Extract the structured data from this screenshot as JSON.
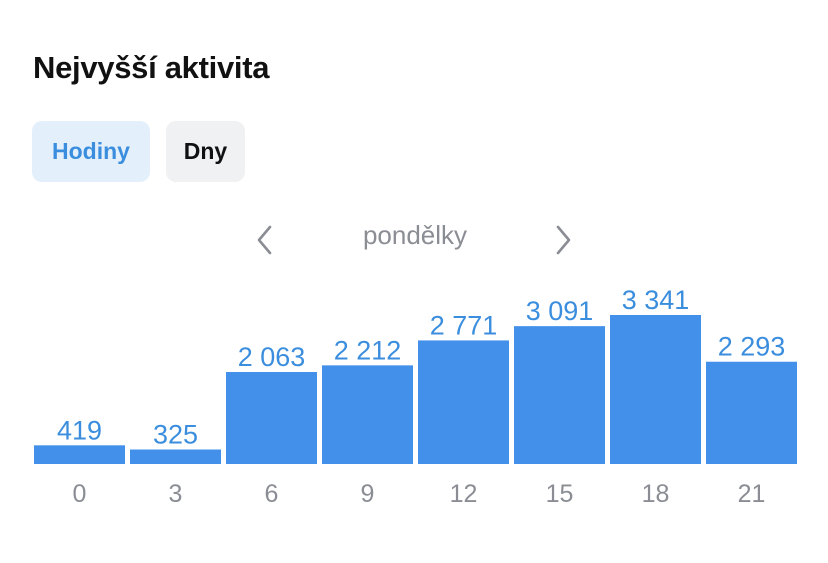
{
  "header": {
    "title": "Nejvyšší aktivita"
  },
  "toggle": {
    "hours_label": "Hodiny",
    "days_label": "Dny",
    "selected": "hours"
  },
  "period_nav": {
    "label": "pondělky",
    "prev_icon": "chevron-left-icon",
    "next_icon": "chevron-right-icon"
  },
  "colors": {
    "bar": "#4290ea",
    "value_label": "#3b8ede",
    "selected_tab_bg": "#e3f0fc",
    "tab_bg": "#f0f1f3"
  },
  "chart_data": {
    "type": "bar",
    "categories": [
      "0",
      "3",
      "6",
      "9",
      "12",
      "15",
      "18",
      "21"
    ],
    "values": [
      419,
      325,
      2063,
      2212,
      2771,
      3091,
      3341,
      2293
    ],
    "value_labels": [
      "419",
      "325",
      "2 063",
      "2 212",
      "2 771",
      "3 091",
      "3 341",
      "2 293"
    ],
    "title": "",
    "xlabel": "",
    "ylabel": "",
    "grid": false
  }
}
